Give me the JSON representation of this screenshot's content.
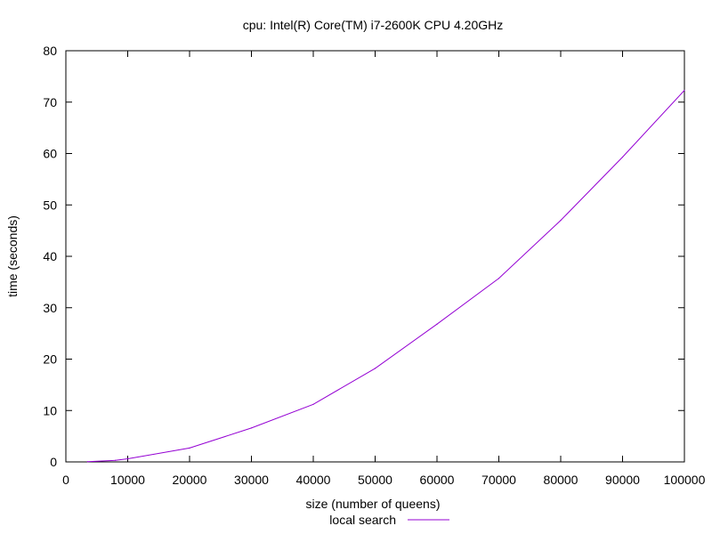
{
  "chart_data": {
    "type": "line",
    "title": "cpu: Intel(R) Core(TM) i7-2600K CPU  4.20GHz",
    "xlabel": "size (number of queens)",
    "ylabel": "time (seconds)",
    "xlim": [
      0,
      100000
    ],
    "ylim": [
      0,
      80
    ],
    "xticks": [
      0,
      10000,
      20000,
      30000,
      40000,
      50000,
      60000,
      70000,
      80000,
      90000,
      100000
    ],
    "yticks": [
      0,
      10,
      20,
      30,
      40,
      50,
      60,
      70,
      80
    ],
    "grid": false,
    "legend_position": "bottom-center",
    "series": [
      {
        "name": "local search",
        "color": "#9400d3",
        "x": [
          3500,
          8000,
          10000,
          20000,
          30000,
          40000,
          50000,
          60000,
          70000,
          80000,
          90000,
          100000
        ],
        "y": [
          0.05,
          0.3,
          0.6,
          2.7,
          6.6,
          11.2,
          18.2,
          26.8,
          35.7,
          47.0,
          59.3,
          72.3
        ]
      }
    ]
  }
}
